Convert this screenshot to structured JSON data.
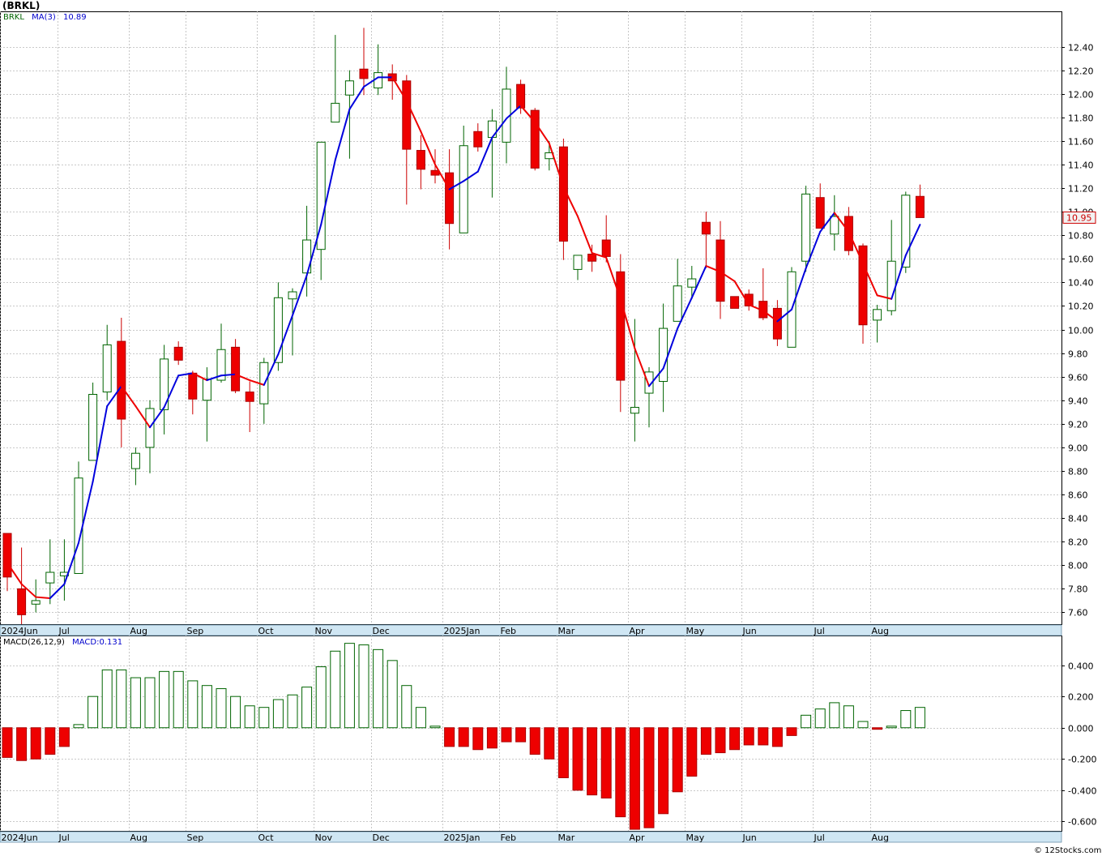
{
  "chart_data": {
    "type": "candlestick",
    "title": "(BRKL)",
    "credit": "© 12Stocks.com",
    "frequency": "weekly",
    "price_panel": {
      "legend": {
        "symbol": "BRKL",
        "ma_label": "MA(3)",
        "ma_value": "10.89"
      },
      "last_price_label": "10.95",
      "ylim": [
        7.5,
        12.7
      ],
      "yticks": [
        "7.60",
        "7.80",
        "8.00",
        "8.20",
        "8.40",
        "8.60",
        "8.80",
        "9.00",
        "9.20",
        "9.40",
        "9.60",
        "9.80",
        "10.00",
        "10.20",
        "10.40",
        "10.60",
        "10.80",
        "11.00",
        "11.20",
        "11.40",
        "11.60",
        "11.80",
        "12.00",
        "12.20",
        "12.40"
      ]
    },
    "x_labels": [
      {
        "label": "2024Jun",
        "index": 0
      },
      {
        "label": "Jul",
        "index": 4
      },
      {
        "label": "Aug",
        "index": 9
      },
      {
        "label": "Sep",
        "index": 13
      },
      {
        "label": "Oct",
        "index": 18
      },
      {
        "label": "Nov",
        "index": 22
      },
      {
        "label": "Dec",
        "index": 26
      },
      {
        "label": "2025Jan",
        "index": 31
      },
      {
        "label": "Feb",
        "index": 35
      },
      {
        "label": "Mar",
        "index": 39
      },
      {
        "label": "Apr",
        "index": 44
      },
      {
        "label": "May",
        "index": 48
      },
      {
        "label": "Jun",
        "index": 52
      },
      {
        "label": "Jul",
        "index": 57
      },
      {
        "label": "Aug",
        "index": 61
      }
    ],
    "candles": [
      {
        "o": 8.27,
        "h": 8.27,
        "l": 7.78,
        "c": 7.9
      },
      {
        "o": 7.8,
        "h": 8.15,
        "l": 7.5,
        "c": 7.58
      },
      {
        "o": 7.67,
        "h": 7.88,
        "l": 7.6,
        "c": 7.7
      },
      {
        "o": 7.85,
        "h": 8.22,
        "l": 7.67,
        "c": 7.94
      },
      {
        "o": 7.91,
        "h": 8.22,
        "l": 7.7,
        "c": 7.94
      },
      {
        "o": 7.93,
        "h": 8.88,
        "l": 7.93,
        "c": 8.74
      },
      {
        "o": 8.89,
        "h": 9.55,
        "l": 8.89,
        "c": 9.45
      },
      {
        "o": 9.47,
        "h": 10.04,
        "l": 9.4,
        "c": 9.87
      },
      {
        "o": 9.9,
        "h": 10.1,
        "l": 9.0,
        "c": 9.24
      },
      {
        "o": 8.82,
        "h": 9.0,
        "l": 8.68,
        "c": 8.95
      },
      {
        "o": 9.0,
        "h": 9.4,
        "l": 8.78,
        "c": 9.33
      },
      {
        "o": 9.32,
        "h": 9.87,
        "l": 9.11,
        "c": 9.75
      },
      {
        "o": 9.85,
        "h": 9.9,
        "l": 9.7,
        "c": 9.74
      },
      {
        "o": 9.63,
        "h": 9.65,
        "l": 9.28,
        "c": 9.41
      },
      {
        "o": 9.4,
        "h": 9.68,
        "l": 9.05,
        "c": 9.58
      },
      {
        "o": 9.57,
        "h": 10.05,
        "l": 9.55,
        "c": 9.83
      },
      {
        "o": 9.85,
        "h": 9.92,
        "l": 9.46,
        "c": 9.48
      },
      {
        "o": 9.47,
        "h": 9.56,
        "l": 9.13,
        "c": 9.39
      },
      {
        "o": 9.37,
        "h": 9.76,
        "l": 9.2,
        "c": 9.72
      },
      {
        "o": 9.72,
        "h": 10.4,
        "l": 9.65,
        "c": 10.27
      },
      {
        "o": 10.26,
        "h": 10.35,
        "l": 9.78,
        "c": 10.32
      },
      {
        "o": 10.48,
        "h": 11.05,
        "l": 10.28,
        "c": 10.76
      },
      {
        "o": 10.68,
        "h": 11.58,
        "l": 10.42,
        "c": 11.59
      },
      {
        "o": 11.76,
        "h": 12.5,
        "l": 11.76,
        "c": 11.92
      },
      {
        "o": 11.99,
        "h": 12.2,
        "l": 11.45,
        "c": 12.11
      },
      {
        "o": 12.21,
        "h": 12.56,
        "l": 11.99,
        "c": 12.13
      },
      {
        "o": 12.05,
        "h": 12.42,
        "l": 11.99,
        "c": 12.18
      },
      {
        "o": 12.17,
        "h": 12.25,
        "l": 11.95,
        "c": 12.11
      },
      {
        "o": 12.11,
        "h": 12.16,
        "l": 11.06,
        "c": 11.53
      },
      {
        "o": 11.52,
        "h": 11.65,
        "l": 11.19,
        "c": 11.36
      },
      {
        "o": 11.35,
        "h": 11.53,
        "l": 11.24,
        "c": 11.31
      },
      {
        "o": 11.33,
        "h": 11.53,
        "l": 10.68,
        "c": 10.9
      },
      {
        "o": 10.82,
        "h": 11.73,
        "l": 10.82,
        "c": 11.56
      },
      {
        "o": 11.68,
        "h": 11.75,
        "l": 11.51,
        "c": 11.55
      },
      {
        "o": 11.63,
        "h": 11.87,
        "l": 11.12,
        "c": 11.77
      },
      {
        "o": 11.59,
        "h": 12.23,
        "l": 11.41,
        "c": 12.04
      },
      {
        "o": 12.08,
        "h": 12.12,
        "l": 11.83,
        "c": 11.88
      },
      {
        "o": 11.86,
        "h": 11.88,
        "l": 11.35,
        "c": 11.37
      },
      {
        "o": 11.45,
        "h": 11.6,
        "l": 11.35,
        "c": 11.5
      },
      {
        "o": 11.55,
        "h": 11.62,
        "l": 10.59,
        "c": 10.75
      },
      {
        "o": 10.51,
        "h": 10.63,
        "l": 10.42,
        "c": 10.63
      },
      {
        "o": 10.64,
        "h": 10.72,
        "l": 10.49,
        "c": 10.58
      },
      {
        "o": 10.76,
        "h": 10.97,
        "l": 10.57,
        "c": 10.62
      },
      {
        "o": 10.49,
        "h": 10.64,
        "l": 9.3,
        "c": 9.57
      },
      {
        "o": 9.29,
        "h": 10.09,
        "l": 9.05,
        "c": 9.34
      },
      {
        "o": 9.46,
        "h": 9.68,
        "l": 9.17,
        "c": 9.64
      },
      {
        "o": 9.56,
        "h": 10.22,
        "l": 9.3,
        "c": 10.01
      },
      {
        "o": 10.07,
        "h": 10.6,
        "l": 10.07,
        "c": 10.37
      },
      {
        "o": 10.36,
        "h": 10.54,
        "l": 10.26,
        "c": 10.43
      },
      {
        "o": 10.91,
        "h": 11.0,
        "l": 10.52,
        "c": 10.81
      },
      {
        "o": 10.76,
        "h": 10.92,
        "l": 10.09,
        "c": 10.24
      },
      {
        "o": 10.28,
        "h": 10.28,
        "l": 10.18,
        "c": 10.18
      },
      {
        "o": 10.3,
        "h": 10.34,
        "l": 10.16,
        "c": 10.2
      },
      {
        "o": 10.24,
        "h": 10.52,
        "l": 10.08,
        "c": 10.1
      },
      {
        "o": 10.18,
        "h": 10.25,
        "l": 9.86,
        "c": 9.92
      },
      {
        "o": 9.85,
        "h": 10.53,
        "l": 9.85,
        "c": 10.49
      },
      {
        "o": 10.58,
        "h": 11.22,
        "l": 10.49,
        "c": 11.15
      },
      {
        "o": 11.12,
        "h": 11.24,
        "l": 10.87,
        "c": 10.86
      },
      {
        "o": 10.81,
        "h": 11.14,
        "l": 10.67,
        "c": 10.96
      },
      {
        "o": 10.96,
        "h": 11.04,
        "l": 10.63,
        "c": 10.67
      },
      {
        "o": 10.71,
        "h": 10.73,
        "l": 9.88,
        "c": 10.04
      },
      {
        "o": 10.08,
        "h": 10.21,
        "l": 9.89,
        "c": 10.17
      },
      {
        "o": 10.16,
        "h": 10.93,
        "l": 10.12,
        "c": 10.58
      },
      {
        "o": 10.53,
        "h": 11.17,
        "l": 10.48,
        "c": 11.14
      },
      {
        "o": 11.13,
        "h": 11.23,
        "l": 10.97,
        "c": 10.95
      }
    ],
    "ma3": [
      8.02,
      7.84,
      7.73,
      7.72,
      7.84,
      8.19,
      8.71,
      9.35,
      9.52,
      9.35,
      9.17,
      9.34,
      9.61,
      9.63,
      9.57,
      9.61,
      9.62,
      9.57,
      9.53,
      9.79,
      10.12,
      10.46,
      10.89,
      11.44,
      11.87,
      12.06,
      12.14,
      12.14,
      11.94,
      11.68,
      11.4,
      11.19,
      11.26,
      11.34,
      11.63,
      11.79,
      11.9,
      11.76,
      11.58,
      11.21,
      10.96,
      10.65,
      10.61,
      10.26,
      9.84,
      9.52,
      9.67,
      10.01,
      10.27,
      10.54,
      10.49,
      10.41,
      10.21,
      10.16,
      10.07,
      10.17,
      10.52,
      10.83,
      10.99,
      10.83,
      10.56,
      10.29,
      10.26,
      10.63,
      10.89
    ],
    "macd_panel": {
      "legend": {
        "name": "MACD(26,12,9)",
        "value_label": "MACD:0.131"
      },
      "ylim": [
        -0.66,
        0.59
      ],
      "yticks": [
        "-0.600",
        "-0.400",
        "-0.200",
        "0.000",
        "0.200",
        "0.400"
      ],
      "values": [
        -0.19,
        -0.21,
        -0.2,
        -0.17,
        -0.12,
        0.02,
        0.2,
        0.37,
        0.37,
        0.32,
        0.32,
        0.36,
        0.36,
        0.3,
        0.27,
        0.25,
        0.2,
        0.14,
        0.13,
        0.18,
        0.21,
        0.26,
        0.39,
        0.49,
        0.54,
        0.53,
        0.5,
        0.43,
        0.27,
        0.13,
        0.01,
        -0.12,
        -0.12,
        -0.14,
        -0.13,
        -0.09,
        -0.09,
        -0.17,
        -0.2,
        -0.32,
        -0.4,
        -0.43,
        -0.45,
        -0.57,
        -0.65,
        -0.64,
        -0.55,
        -0.41,
        -0.31,
        -0.17,
        -0.16,
        -0.14,
        -0.11,
        -0.11,
        -0.12,
        -0.05,
        0.08,
        0.12,
        0.16,
        0.14,
        0.04,
        -0.01,
        0.01,
        0.11,
        0.13
      ]
    }
  }
}
